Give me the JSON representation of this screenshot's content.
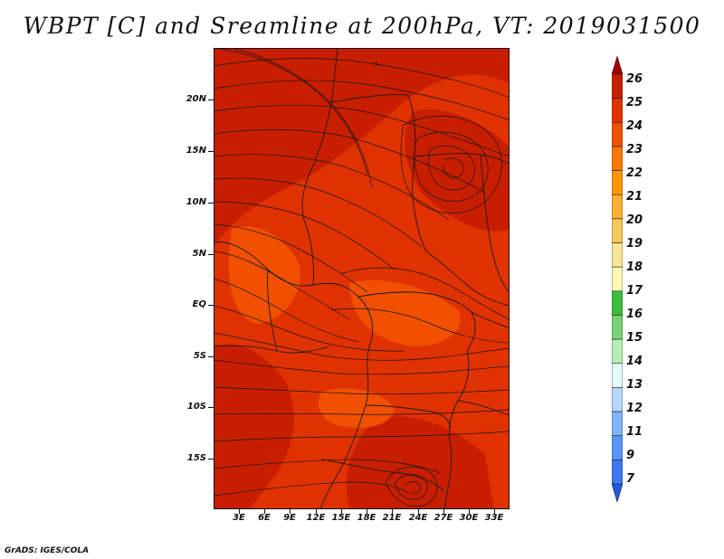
{
  "title": "WBPT [C] and Sreamline at 200hPa, VT: 2019031500",
  "credit": "GrADS: IGES/COLA",
  "axes": {
    "lat_labels": [
      "20N",
      "15N",
      "10N",
      "5N",
      "EQ",
      "5S",
      "10S",
      "15S"
    ],
    "lon_labels": [
      "3E",
      "6E",
      "9E",
      "12E",
      "15E",
      "18E",
      "21E",
      "24E",
      "27E",
      "30E",
      "33E"
    ]
  },
  "colorbar": {
    "labels": [
      "26",
      "25",
      "24",
      "23",
      "22",
      "21",
      "20",
      "19",
      "18",
      "17",
      "16",
      "15",
      "14",
      "13",
      "12",
      "11",
      "9",
      "7"
    ],
    "colors": [
      "#a50000",
      "#c81e00",
      "#e03200",
      "#f05000",
      "#fa7800",
      "#fa9600",
      "#faaf32",
      "#fac85a",
      "#fae696",
      "#fafab4",
      "#3cbe3c",
      "#78d278",
      "#b4f0b4",
      "#e6fafa",
      "#b4d7fa",
      "#82b4fa",
      "#5a96f5",
      "#3c78f0",
      "#1e5ae6"
    ]
  },
  "map": {
    "background_color": "#e03200",
    "warm_color": "#c81e00",
    "cool_color": "#f05000"
  }
}
